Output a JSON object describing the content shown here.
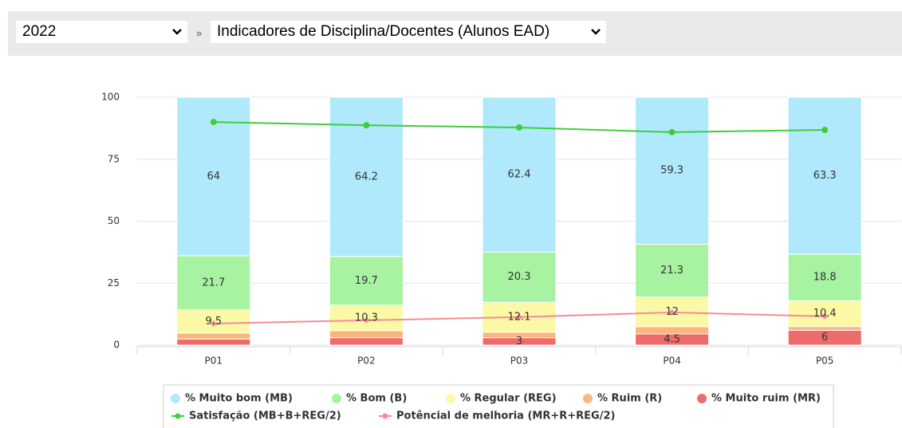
{
  "toolbar": {
    "year": "2022",
    "separator": "»",
    "report": "Indicadores de Disciplina/Docentes (Alunos EAD)"
  },
  "chart_data": {
    "type": "bar",
    "stacked": true,
    "categories": [
      "P01",
      "P02",
      "P03",
      "P04",
      "P05"
    ],
    "ylim": [
      0,
      100
    ],
    "yticks": [
      0,
      25,
      50,
      75,
      100
    ],
    "grid": true,
    "series": [
      {
        "name": "% Muito ruim (MR)",
        "color": "#ee6b6b",
        "values": [
          2.5,
          3,
          3,
          4.5,
          6
        ],
        "labeled": [
          false,
          false,
          true,
          true,
          true
        ]
      },
      {
        "name": "% Ruim (R)",
        "color": "#f9b77b",
        "values": [
          2.3,
          2.8,
          2.2,
          2.9,
          1.5
        ],
        "labeled": [
          false,
          false,
          false,
          false,
          false
        ]
      },
      {
        "name": "% Regular (REG)",
        "color": "#fbf8a6",
        "values": [
          9.5,
          10.3,
          12.1,
          12,
          10.4
        ],
        "labeled": [
          true,
          true,
          true,
          true,
          true
        ]
      },
      {
        "name": "% Bom (B)",
        "color": "#a7f3a1",
        "values": [
          21.7,
          19.7,
          20.3,
          21.3,
          18.8
        ],
        "labeled": [
          true,
          true,
          true,
          true,
          true
        ]
      },
      {
        "name": "% Muito bom (MB)",
        "color": "#afe9fb",
        "values": [
          64,
          64.2,
          62.4,
          59.3,
          63.3
        ],
        "labeled": [
          true,
          true,
          true,
          true,
          true
        ]
      }
    ],
    "lines": [
      {
        "name": "Satisfação (MB+B+REG/2)",
        "color": "#3fce3a",
        "values": [
          90,
          88.7,
          87.8,
          85.9,
          86.8
        ]
      },
      {
        "name": "Potêncial de melhoria (MR+R+REG/2)",
        "color": "#f58c96",
        "values": [
          8.7,
          10,
          11.3,
          13.2,
          11.6
        ]
      }
    ],
    "legend_order": [
      4,
      3,
      2,
      1,
      0
    ]
  }
}
